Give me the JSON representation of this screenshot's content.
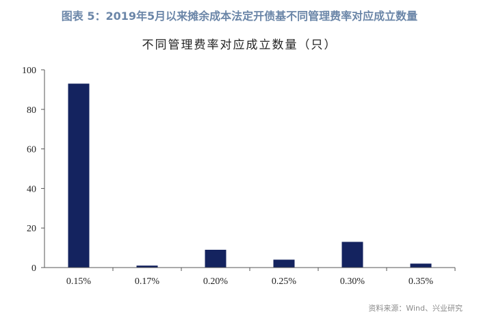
{
  "figure": {
    "label": "图表 5：",
    "title": "2019年5月以来摊余成本法定开债基不同管理费率对应成立数量",
    "source": "资料来源：Wind、兴业研究"
  },
  "colors": {
    "bar": "#14235f",
    "title": "#6b86a8",
    "axis": "#555555"
  },
  "chart_data": {
    "type": "bar",
    "title": "不同管理费率对应成立数量（只）",
    "xlabel": "",
    "ylabel": "",
    "categories": [
      "0.15%",
      "0.17%",
      "0.20%",
      "0.25%",
      "0.30%",
      "0.35%"
    ],
    "values": [
      93,
      1,
      9,
      4,
      13,
      2
    ],
    "ylim": [
      0,
      100
    ],
    "yticks": [
      0,
      20,
      40,
      60,
      80,
      100
    ],
    "grid": false,
    "legend": "none"
  }
}
